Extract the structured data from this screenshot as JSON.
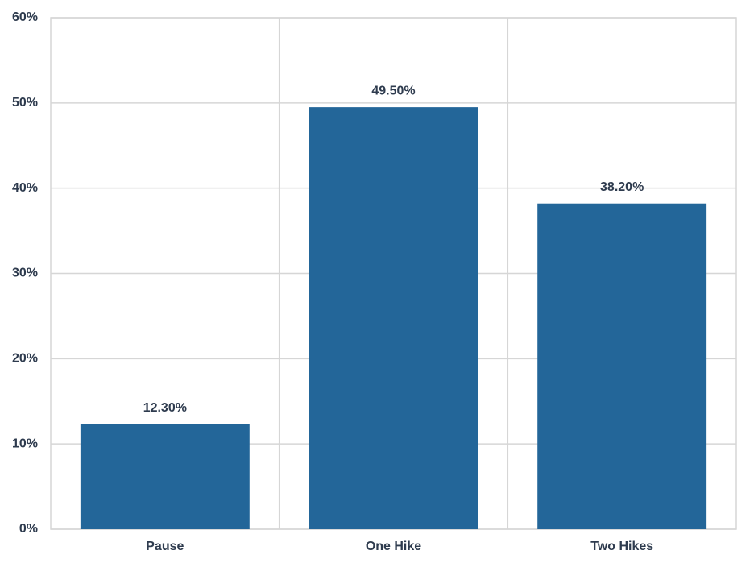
{
  "chart_data": {
    "type": "bar",
    "categories": [
      "Pause",
      "One Hike",
      "Two Hikes"
    ],
    "values": [
      12.3,
      49.5,
      38.2
    ],
    "value_labels": [
      "12.30%",
      "49.50%",
      "38.20%"
    ],
    "color": "#236699",
    "ylim": [
      0,
      60
    ],
    "yticks": [
      {
        "value": 0,
        "label": "0%"
      },
      {
        "value": 10,
        "label": "10%"
      },
      {
        "value": 20,
        "label": "20%"
      },
      {
        "value": 30,
        "label": "30%"
      },
      {
        "value": 40,
        "label": "40%"
      },
      {
        "value": 50,
        "label": "50%"
      },
      {
        "value": 60,
        "label": "60%"
      }
    ],
    "grid": true
  }
}
